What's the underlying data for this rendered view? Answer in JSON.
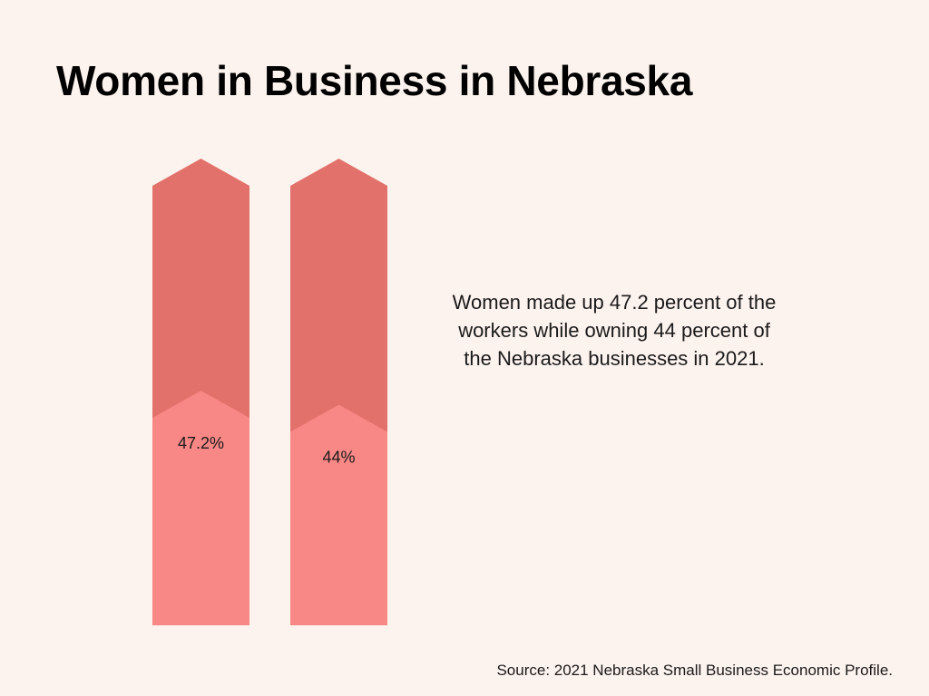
{
  "title": "Women in Business in Nebraska",
  "description": "Women made up 47.2 percent of the workers while owning 44 percent of the Nebraska businesses in 2021.",
  "source": "Source: 2021 Nebraska Small Business Economic Profile.",
  "colors": {
    "background": "#fdf3ee",
    "total": "#e3716b",
    "share": "#f88886"
  },
  "chart_data": {
    "type": "bar",
    "ylim": [
      0,
      100
    ],
    "values": [
      47.2,
      44
    ],
    "data_labels": [
      "47.2%",
      "44%"
    ]
  }
}
